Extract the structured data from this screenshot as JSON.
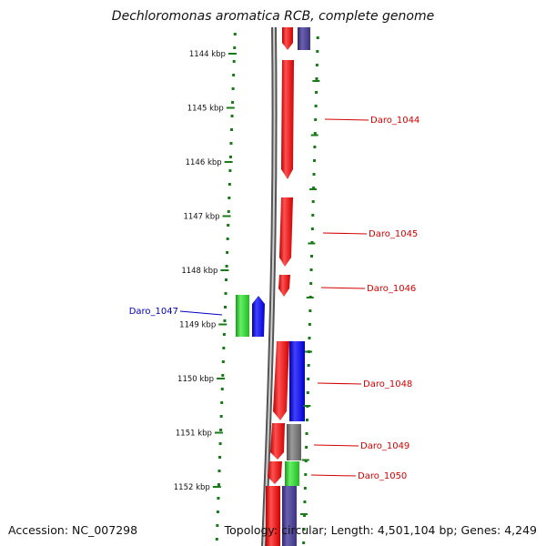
{
  "title": "Dechloromonas aromatica RCB, complete genome",
  "footer": {
    "accession": "Accession: NC_007298",
    "topology": "Topology: circular; Length: 4,501,104 bp; Genes: 4,249"
  },
  "ticks": [
    {
      "label": "1144 kbp",
      "kbp": 1144
    },
    {
      "label": "1145 kbp",
      "kbp": 1145
    },
    {
      "label": "1146 kbp",
      "kbp": 1146
    },
    {
      "label": "1147 kbp",
      "kbp": 1147
    },
    {
      "label": "1148 kbp",
      "kbp": 1148
    },
    {
      "label": "1149 kbp",
      "kbp": 1149
    },
    {
      "label": "1150 kbp",
      "kbp": 1150
    },
    {
      "label": "1151 kbp",
      "kbp": 1151
    },
    {
      "label": "1152 kbp",
      "kbp": 1152
    }
  ],
  "gene_labels": [
    {
      "text": "Daro_1044",
      "color": "#d40000"
    },
    {
      "text": "Daro_1045",
      "color": "#d40000"
    },
    {
      "text": "Daro_1046",
      "color": "#d40000"
    },
    {
      "text": "Daro_1047",
      "color": "#0000c0"
    },
    {
      "text": "Daro_1048",
      "color": "#d40000"
    },
    {
      "text": "Daro_1049",
      "color": "#d40000"
    },
    {
      "text": "Daro_1050",
      "color": "#d40000"
    }
  ],
  "colors": {
    "red_gene": "#ff0000",
    "blue_gene": "#0000ff",
    "green_gene": "#22cc22",
    "gray_gene": "#707070",
    "purple_gene": "#4a3f8f",
    "axis_green": "#1a7a1a",
    "backbone": "#888888"
  }
}
